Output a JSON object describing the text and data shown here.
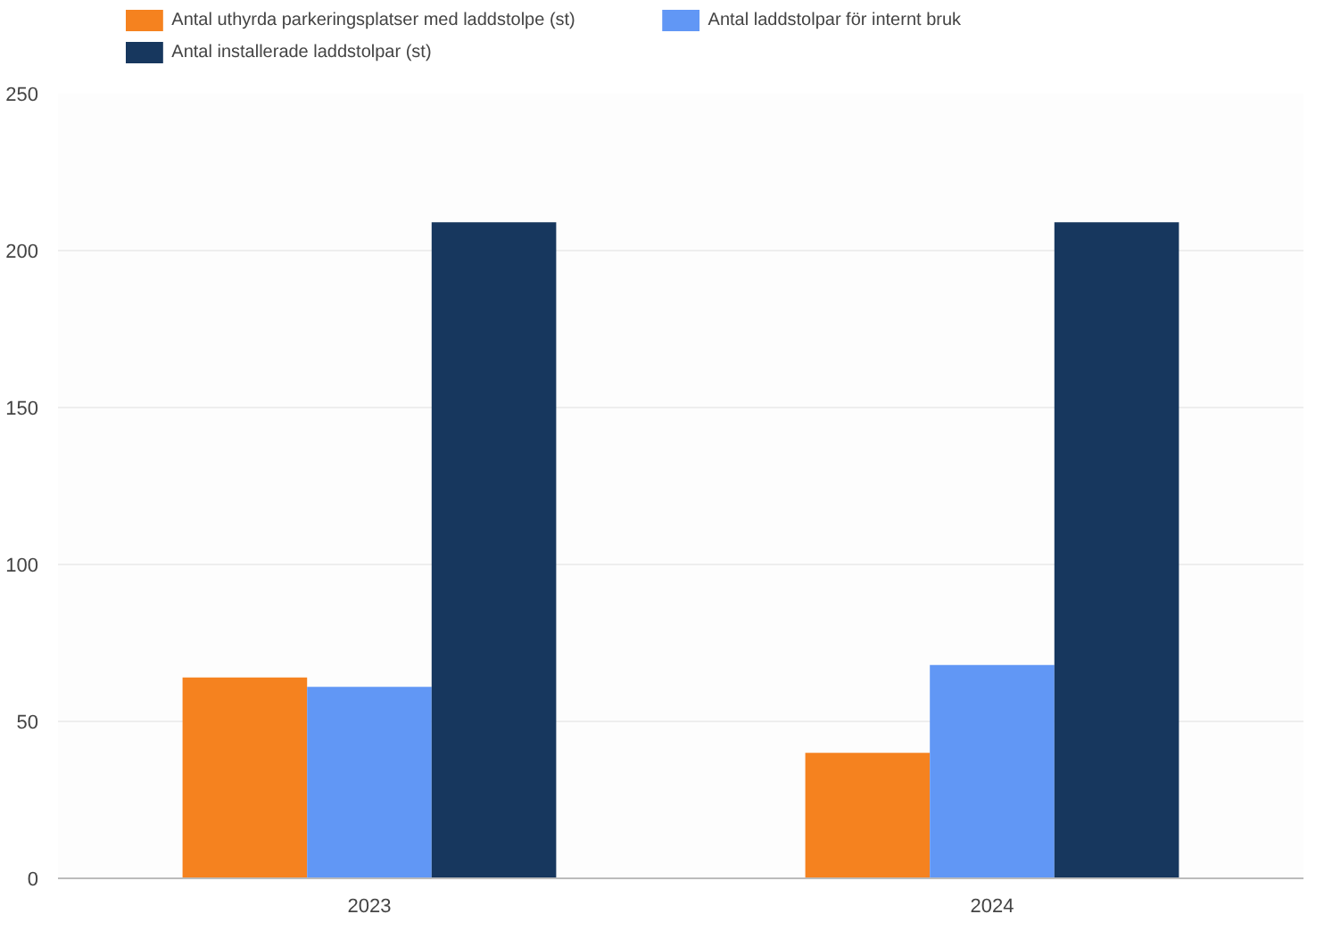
{
  "chart_data": {
    "type": "bar",
    "categories": [
      "2023",
      "2024"
    ],
    "series": [
      {
        "name": "Antal uthyrda parkeringsplatser med laddstolpe (st)",
        "color": "#f5821f",
        "values": [
          64,
          40
        ]
      },
      {
        "name": "Antal laddstolpar för internt bruk",
        "color": "#6197f5",
        "values": [
          61,
          68
        ]
      },
      {
        "name": "Antal installerade laddstolpar (st)",
        "color": "#17375e",
        "values": [
          209,
          209
        ]
      }
    ],
    "ylim": [
      0,
      250
    ],
    "yticks": [
      0,
      50,
      100,
      150,
      200,
      250
    ],
    "grid": "y",
    "legend": "top left"
  }
}
